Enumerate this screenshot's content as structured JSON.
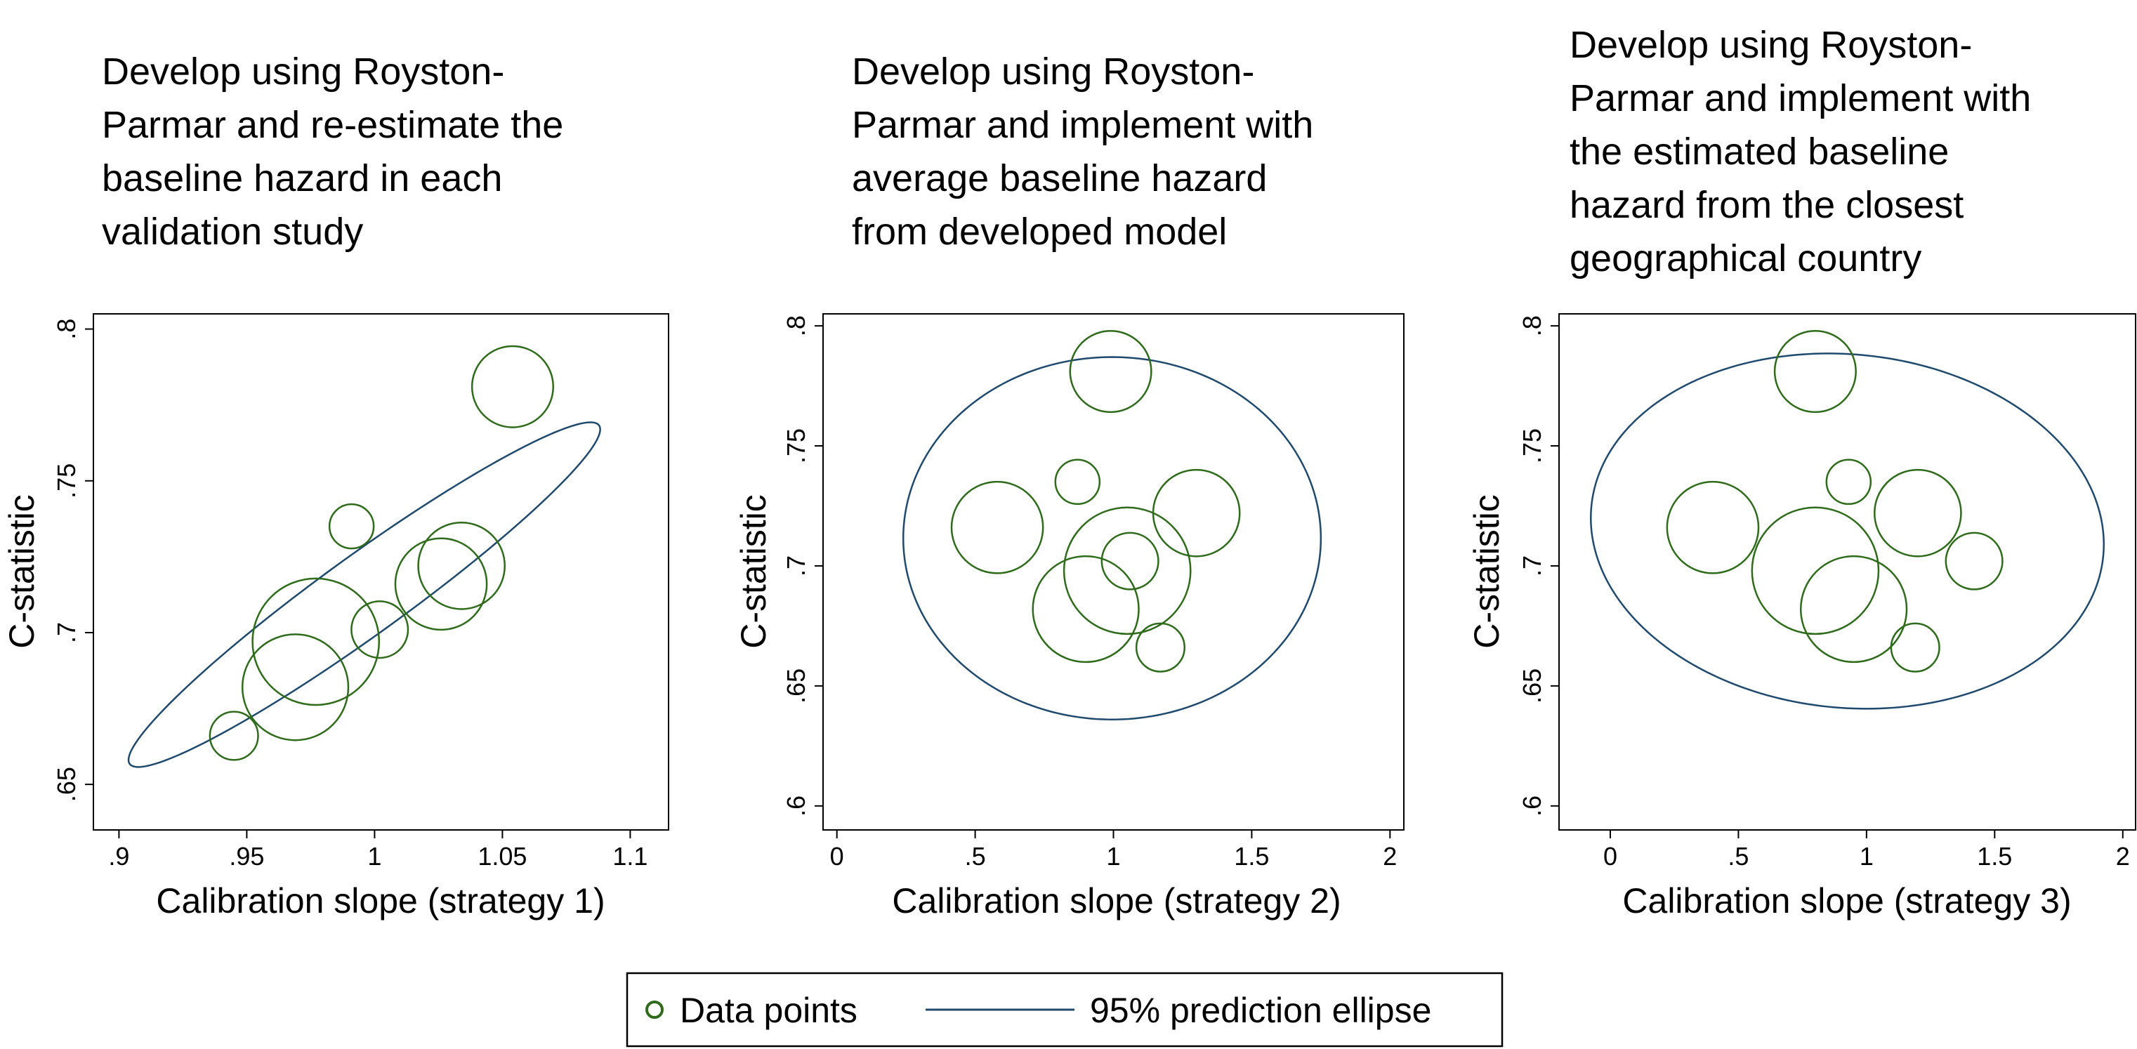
{
  "chart_data": [
    {
      "type": "scatter",
      "title": [
        "Develop using Royston-",
        "Parmar and re-estimate the",
        "baseline hazard in each",
        "validation study"
      ],
      "xlabel": "Calibration slope (strategy 1)",
      "ylabel": "C-statistic",
      "xlim": [
        0.89,
        1.115
      ],
      "ylim": [
        0.635,
        0.805
      ],
      "xticks": [
        0.9,
        0.95,
        1,
        1.05,
        1.1
      ],
      "xtick_labels": [
        ".9",
        ".95",
        "1",
        "1.05",
        "1.1"
      ],
      "yticks": [
        0.65,
        0.7,
        0.75,
        0.8
      ],
      "ytick_labels": [
        ".65",
        ".7",
        ".75",
        ".8"
      ],
      "series": [
        {
          "name": "Data points",
          "color": "#2e6b1a",
          "points": [
            {
              "x": 1.054,
              "y": 0.781,
              "size": 37
            },
            {
              "x": 0.991,
              "y": 0.735,
              "size": 11
            },
            {
              "x": 1.034,
              "y": 0.722,
              "size": 42
            },
            {
              "x": 1.026,
              "y": 0.716,
              "size": 47
            },
            {
              "x": 1.002,
              "y": 0.701,
              "size": 18
            },
            {
              "x": 0.977,
              "y": 0.697,
              "size": 90
            },
            {
              "x": 0.969,
              "y": 0.682,
              "size": 63
            },
            {
              "x": 0.945,
              "y": 0.666,
              "size": 13
            }
          ]
        },
        {
          "name": "95% prediction ellipse",
          "color": "#1f4a6e",
          "ellipse": {
            "cx": 0.996,
            "cy": 0.7125,
            "a": 0.1178,
            "b": 0.01262,
            "angle_deg": 38.92
          }
        }
      ]
    },
    {
      "type": "scatter",
      "title": [
        "Develop using Royston-",
        "Parmar and implement with",
        "average baseline hazard",
        "from developed model"
      ],
      "xlabel": "Calibration slope (strategy 2)",
      "ylabel": "C-statistic",
      "xlim": [
        -0.05,
        2.05
      ],
      "ylim": [
        0.59,
        0.805
      ],
      "xticks": [
        0,
        0.5,
        1,
        1.5,
        2
      ],
      "xtick_labels": [
        "0",
        ".5",
        "1",
        "1.5",
        "2"
      ],
      "yticks": [
        0.6,
        0.65,
        0.7,
        0.75,
        0.8
      ],
      "ytick_labels": [
        ".6",
        ".65",
        ".7",
        ".75",
        ".8"
      ],
      "series": [
        {
          "name": "Data points",
          "color": "#2e6b1a",
          "points": [
            {
              "x": 0.99,
              "y": 0.781,
              "size": 37
            },
            {
              "x": 0.87,
              "y": 0.735,
              "size": 11
            },
            {
              "x": 0.58,
              "y": 0.716,
              "size": 47
            },
            {
              "x": 1.3,
              "y": 0.722,
              "size": 42
            },
            {
              "x": 1.06,
              "y": 0.702,
              "size": 18
            },
            {
              "x": 1.05,
              "y": 0.698,
              "size": 90
            },
            {
              "x": 0.9,
              "y": 0.682,
              "size": 63
            },
            {
              "x": 1.17,
              "y": 0.666,
              "size": 13
            }
          ]
        },
        {
          "name": "95% prediction ellipse",
          "color": "#1f4a6e",
          "ellipse": {
            "cx": 0.995,
            "cy": 0.7115,
            "a": 0.755,
            "b": 0.0755,
            "angle_deg": 0
          }
        }
      ]
    },
    {
      "type": "scatter",
      "title": [
        "Develop using Royston-",
        "Parmar and implement with",
        "the estimated baseline",
        "hazard from the closest",
        "geographical country"
      ],
      "xlabel": "Calibration slope (strategy 3)",
      "ylabel": "C-statistic",
      "xlim": [
        -0.2,
        2.05
      ],
      "ylim": [
        0.59,
        0.805
      ],
      "xticks": [
        0,
        0.5,
        1,
        1.5,
        2
      ],
      "xtick_labels": [
        "0",
        ".5",
        "1",
        "1.5",
        "2"
      ],
      "yticks": [
        0.6,
        0.65,
        0.7,
        0.75,
        0.8
      ],
      "ytick_labels": [
        ".6",
        ".65",
        ".7",
        ".75",
        ".8"
      ],
      "series": [
        {
          "name": "Data points",
          "color": "#2e6b1a",
          "points": [
            {
              "x": 0.8,
              "y": 0.781,
              "size": 37
            },
            {
              "x": 0.93,
              "y": 0.735,
              "size": 11
            },
            {
              "x": 0.4,
              "y": 0.716,
              "size": 47
            },
            {
              "x": 1.2,
              "y": 0.722,
              "size": 42
            },
            {
              "x": 1.42,
              "y": 0.702,
              "size": 18
            },
            {
              "x": 0.8,
              "y": 0.698,
              "size": 90
            },
            {
              "x": 0.95,
              "y": 0.682,
              "size": 63
            },
            {
              "x": 1.19,
              "y": 0.666,
              "size": 13
            }
          ]
        },
        {
          "name": "95% prediction ellipse",
          "color": "#1f4a6e",
          "ellipse": {
            "cx": 0.925,
            "cy": 0.7145,
            "a": 1.005,
            "b": 0.0735,
            "angle_deg": -8.0
          }
        }
      ]
    }
  ],
  "legend": {
    "placement": "bottom-center",
    "items": [
      {
        "label": "Data points",
        "kind": "marker",
        "color": "#2e6b1a"
      },
      {
        "label": "95% prediction ellipse",
        "kind": "line",
        "color": "#1f4a6e"
      }
    ]
  }
}
